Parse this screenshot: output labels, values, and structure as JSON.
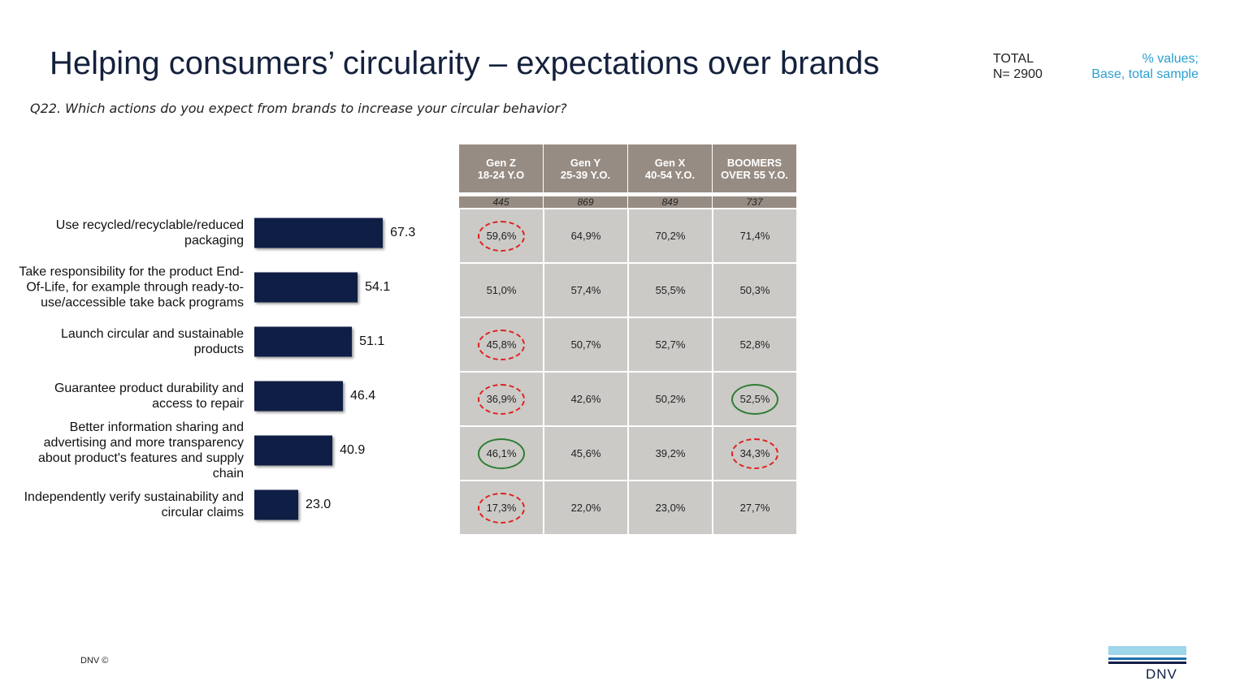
{
  "header": {
    "title": "Helping consumers’ circularity – expectations over brands",
    "question": "Q22. Which actions do you expect from brands to increase your circular behavior?",
    "total": "TOTAL",
    "n": "N= 2900",
    "note1": "% values;",
    "note2": "Base, total sample"
  },
  "chart_data": {
    "type": "bar",
    "orientation": "horizontal",
    "color": "#0f1e45",
    "categories": [
      "Use recycled/recyclable/reduced packaging",
      "Take responsibility for the product End-Of-Life, for example through ready-to-use/accessible take back programs",
      "Launch circular and sustainable products",
      "Guarantee product durability and access to repair",
      "Better information sharing and advertising and more transparency about product's features and supply chain",
      "Independently verify sustainability and circular claims"
    ],
    "values": [
      67.3,
      54.1,
      51.1,
      46.4,
      40.9,
      23.0
    ],
    "value_labels": [
      "67.3",
      "54.1",
      "51.1",
      "46.4",
      "40.9",
      "23.0"
    ]
  },
  "table": {
    "columns": [
      [
        "Gen Z",
        "18-24 Y.O"
      ],
      [
        "Gen Y",
        "25-39 Y.O."
      ],
      [
        "Gen X",
        "40-54 Y.O."
      ],
      [
        "BOOMERS",
        "OVER 55 Y.O."
      ]
    ],
    "base": [
      "445",
      "869",
      "849",
      "737"
    ],
    "rows": [
      [
        {
          "text": "59,6%",
          "circle": "red"
        },
        {
          "text": "64,9%"
        },
        {
          "text": "70,2%"
        },
        {
          "text": "71,4%"
        }
      ],
      [
        {
          "text": "51,0%"
        },
        {
          "text": "57,4%"
        },
        {
          "text": "55,5%"
        },
        {
          "text": "50,3%"
        }
      ],
      [
        {
          "text": "45,8%",
          "circle": "red"
        },
        {
          "text": "50,7%"
        },
        {
          "text": "52,7%"
        },
        {
          "text": "52,8%"
        }
      ],
      [
        {
          "text": "36,9%",
          "circle": "red"
        },
        {
          "text": "42,6%"
        },
        {
          "text": "50,2%"
        },
        {
          "text": "52,5%",
          "circle": "green"
        }
      ],
      [
        {
          "text": "46,1%",
          "circle": "green"
        },
        {
          "text": "45,6%"
        },
        {
          "text": "39,2%"
        },
        {
          "text": "34,3%",
          "circle": "red"
        }
      ],
      [
        {
          "text": "17,3%",
          "circle": "red"
        },
        {
          "text": "22,0%"
        },
        {
          "text": "23,0%"
        },
        {
          "text": "27,7%"
        }
      ]
    ]
  },
  "footer": {
    "copyright": "DNV ©",
    "logo": "DNV"
  }
}
